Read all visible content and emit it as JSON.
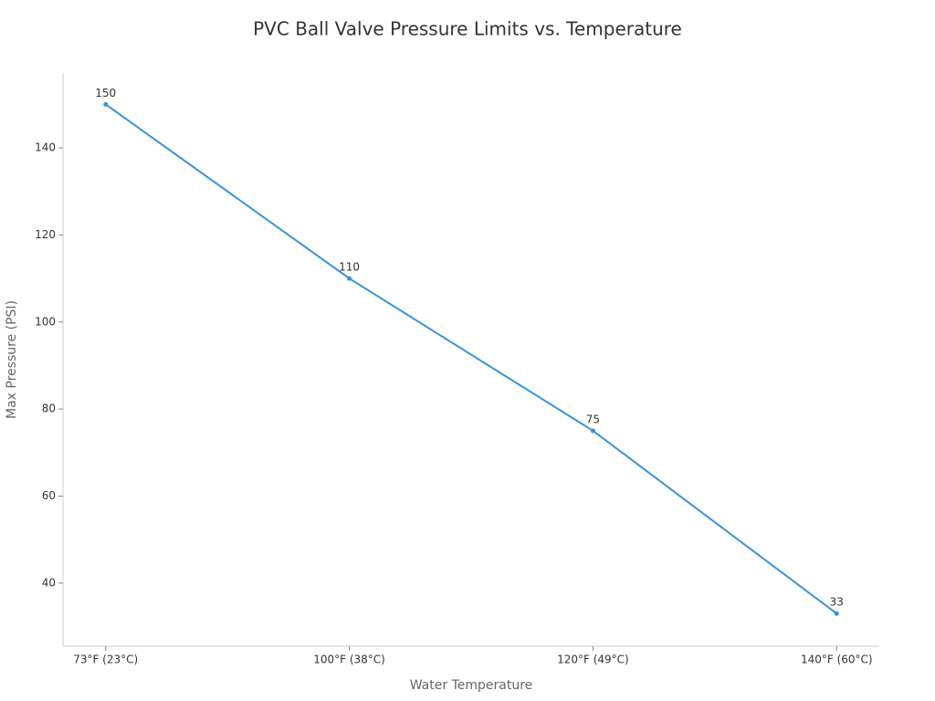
{
  "chart_data": {
    "type": "line",
    "title": "PVC Ball Valve Pressure Limits vs. Temperature",
    "x_label": "Water Temperature",
    "y_label": "Max Pressure (PSI)",
    "categories": [
      "73°F (23°C)",
      "100°F (38°C)",
      "120°F (49°C)",
      "140°F (60°C)"
    ],
    "values": [
      150,
      110,
      75,
      33
    ],
    "color": "#3a92de",
    "ylim": [
      25.5,
      157.2
    ],
    "yticks": [
      40,
      60,
      80,
      100,
      120,
      140
    ],
    "grid": false
  }
}
